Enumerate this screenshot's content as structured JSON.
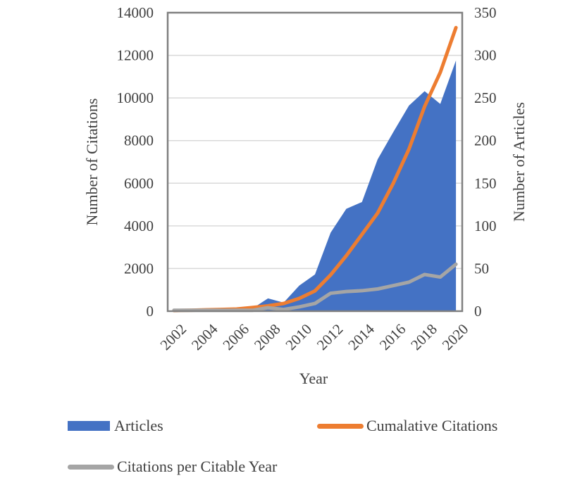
{
  "chart_data": {
    "type": "area",
    "x": [
      2002,
      2003,
      2004,
      2005,
      2006,
      2007,
      2008,
      2009,
      2010,
      2011,
      2012,
      2013,
      2014,
      2015,
      2016,
      2017,
      2018,
      2019,
      2020
    ],
    "x_ticks": [
      "2002",
      "2004",
      "2006",
      "2008",
      "2010",
      "2012",
      "2014",
      "2016",
      "2018",
      "2020"
    ],
    "xlabel": "Year",
    "ylabel_left": "Number of Citations",
    "ylabel_right": "Number of Articles",
    "ylim_left": [
      0,
      14000
    ],
    "ylim_right": [
      0,
      350
    ],
    "yticks_left": [
      "0",
      "2000",
      "4000",
      "6000",
      "8000",
      "10000",
      "12000",
      "14000"
    ],
    "yticks_right": [
      "0",
      "50",
      "100",
      "150",
      "200",
      "250",
      "300",
      "350"
    ],
    "grid": true,
    "legend_position": "bottom",
    "series": [
      {
        "name": "Articles",
        "axis": "right",
        "kind": "area",
        "color": "#4472C4",
        "values": [
          1,
          1,
          1,
          1,
          1,
          3,
          15,
          10,
          30,
          43,
          92,
          120,
          128,
          178,
          210,
          241,
          258,
          243,
          294
        ]
      },
      {
        "name": "Cumalative Citations",
        "axis": "left",
        "kind": "line",
        "color": "#ED7D31",
        "values": [
          30,
          40,
          60,
          80,
          100,
          170,
          250,
          360,
          600,
          950,
          1700,
          2600,
          3600,
          4600,
          6000,
          7600,
          9600,
          11200,
          13300
        ]
      },
      {
        "name": "Citations per Citable Year",
        "axis": "right",
        "kind": "line",
        "color": "#A5A5A5",
        "values": [
          1,
          1,
          1,
          1,
          1,
          1,
          4,
          2,
          5,
          9,
          21,
          23,
          24,
          26,
          30,
          34,
          43,
          40,
          55
        ]
      }
    ]
  }
}
